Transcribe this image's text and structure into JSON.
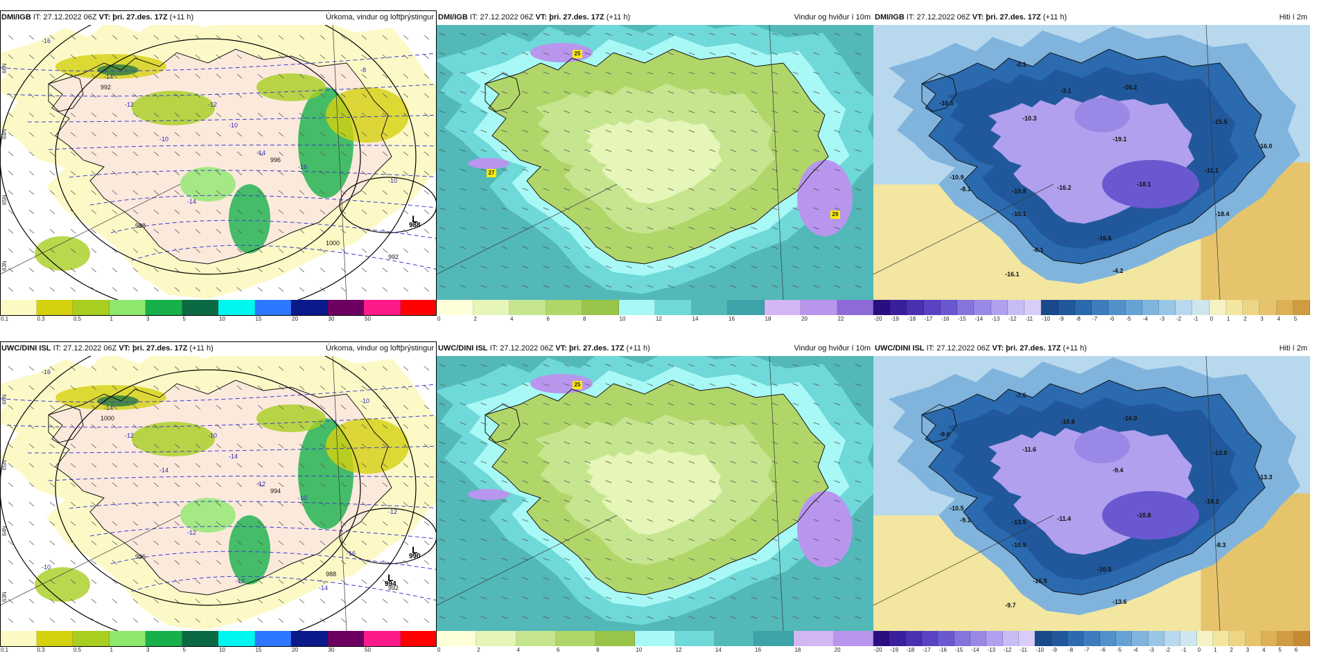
{
  "palettes": {
    "precip": [
      "#fcf9c3",
      "#d5d10f",
      "#a7ce20",
      "#8fe86e",
      "#18b04a",
      "#0b6a44",
      "#00f7ef",
      "#2e77ff",
      "#0a1a8a",
      "#6b0060",
      "#ff1a8c",
      "#ff0000"
    ],
    "wind": [
      "#fefed8",
      "#e6f5b8",
      "#c6e58f",
      "#b0d66a",
      "#98c549",
      "#a8f8f5",
      "#6fd8d8",
      "#52b8b8",
      "#3ea3a8",
      "#d2b7f5",
      "#b896ee",
      "#8c6ad8",
      "#5a38b8"
    ],
    "temp": [
      "#2a0e80",
      "#3a1f9c",
      "#4a30b0",
      "#5a42c2",
      "#6a58d0",
      "#8474dc",
      "#9a88e6",
      "#b0a0ee",
      "#c8bcf5",
      "#d8ccf8",
      "#1b4a8a",
      "#21589c",
      "#2b6aae",
      "#3d7dbd",
      "#5290c9",
      "#66a2d4",
      "#80b4dd",
      "#9ac6e6",
      "#b8d8ee",
      "#d0e6ee",
      "#f5f3c5",
      "#f2e6a0",
      "#ecd585",
      "#e6c46c",
      "#dcb155",
      "#cf9c42",
      "#c48a35"
    ]
  },
  "rows": [
    {
      "source": "DMI/IGB",
      "panels": [
        {
          "type": "precip",
          "src": "DMI/IGB",
          "it_label": "IT:",
          "it": "27.12.2022 06Z",
          "vt_label": "VT:",
          "vt": "þri. 27.des. 17Z",
          "lead": "(+11 h)",
          "title_right": "Úrkoma, vindur og loftþrýstingur",
          "ticks": [
            "0.1",
            "0.3",
            "0.5",
            "1",
            "3",
            "5",
            "10",
            "15",
            "20",
            "30",
            "50"
          ],
          "pressure_labels": [
            "992",
            "988",
            "992",
            "996",
            "1000"
          ],
          "lows": [
            {
              "L": "L",
              "v": "988"
            }
          ],
          "temp_labels": [
            "-16",
            "-14",
            "-12",
            "-10",
            "-14",
            "-12",
            "-10",
            "-14",
            "-16",
            "-8",
            "-10"
          ],
          "lat_labels": [
            "66N",
            "64N",
            "65N",
            "63N"
          ]
        },
        {
          "type": "wind",
          "src": "DMI/IGB",
          "it_label": "IT:",
          "it": "27.12.2022 06Z",
          "vt_label": "VT:",
          "vt": "þri. 27.des. 17Z",
          "lead": "(+11 h)",
          "title_right": "Vindur og hviður í 10m",
          "ticks": [
            "0",
            "2",
            "4",
            "6",
            "8",
            "10",
            "12",
            "14",
            "16",
            "18",
            "20",
            "22"
          ],
          "gusts": [
            "25",
            "27",
            "29"
          ]
        },
        {
          "type": "temp",
          "src": "DMI/IGB",
          "it_label": "IT:",
          "it": "27.12.2022 06Z",
          "vt_label": "VT:",
          "vt": "þri. 27.des. 17Z",
          "lead": "(+11 h)",
          "title_right": "Hiti í 2m",
          "ticks": [
            "-20",
            "-19",
            "-18",
            "-17",
            "-16",
            "-15",
            "-14",
            "-13",
            "-12",
            "-11",
            "-10",
            "-9",
            "-8",
            "-7",
            "-6",
            "-5",
            "-4",
            "-3",
            "-2",
            "-1",
            "0",
            "1",
            "2",
            "3",
            "4",
            "5"
          ],
          "values": [
            "-2.1",
            "-10.5",
            "-10.9",
            "-10.3",
            "-3.1",
            "-16.2",
            "-19.1",
            "-15.5",
            "-16.0",
            "-10.8",
            "-8.1",
            "-16.2",
            "-18.1",
            "-11.1",
            "-10.1",
            "-16.6",
            "-18.4",
            "-6.1",
            "-16.1",
            "-4.2"
          ]
        }
      ]
    },
    {
      "source": "UWC/DINI ISL",
      "panels": [
        {
          "type": "precip",
          "src": "UWC/DINI ISL",
          "it_label": "IT:",
          "it": "27.12.2022 06Z",
          "vt_label": "VT:",
          "vt": "þri. 27.des. 17Z",
          "lead": "(+11 h)",
          "title_right": "Úrkoma, vindur og loftþrýstingur",
          "ticks": [
            "0.1",
            "0.3",
            "0.5",
            "1",
            "3",
            "5",
            "10",
            "15",
            "20",
            "30",
            "50"
          ],
          "pressure_labels": [
            "1000",
            "996",
            "992",
            "994",
            "988"
          ],
          "lows": [
            {
              "L": "L",
              "v": "990"
            },
            {
              "L": "L",
              "v": "994"
            }
          ],
          "temp_labels": [
            "-16",
            "-14",
            "-12",
            "-14",
            "-12",
            "-10",
            "-14",
            "-12",
            "-10",
            "-10",
            "-12",
            "-10",
            "-10",
            "-14",
            "-16"
          ],
          "lat_labels": [
            "66N",
            "65N",
            "64N",
            "63N"
          ]
        },
        {
          "type": "wind",
          "src": "UWC/DINI ISL",
          "it_label": "IT:",
          "it": "27.12.2022 06Z",
          "vt_label": "VT:",
          "vt": "þri. 27.des. 17Z",
          "lead": "(+11 h)",
          "title_right": "Vindur og hviður í 10m",
          "ticks": [
            "0",
            "2",
            "4",
            "6",
            "8",
            "10",
            "12",
            "14",
            "16",
            "18",
            "20"
          ],
          "gusts": [
            "25"
          ]
        },
        {
          "type": "temp",
          "src": "UWC/DINI ISL",
          "it_label": "IT:",
          "it": "27.12.2022 06Z",
          "vt_label": "VT:",
          "vt": "þri. 27.des. 17Z",
          "lead": "(+11 h)",
          "title_right": "Hiti í 2m",
          "ticks": [
            "-20",
            "-19",
            "-18",
            "-17",
            "-16",
            "-15",
            "-14",
            "-13",
            "-12",
            "-11",
            "-10",
            "-9",
            "-8",
            "-7",
            "-6",
            "-5",
            "-4",
            "-3",
            "-2",
            "-1",
            "0",
            "1",
            "2",
            "3",
            "4",
            "5",
            "6"
          ],
          "values": [
            "-7.5",
            "-9.6",
            "-10.5",
            "-11.6",
            "-10.8",
            "-16.0",
            "-9.4",
            "-13.0",
            "-13.3",
            "-13.5",
            "-9.1",
            "-11.4",
            "-10.8",
            "-19.2",
            "-10.9",
            "-10.5",
            "-8.3",
            "-16.5",
            "-9.7",
            "-13.6"
          ]
        }
      ]
    }
  ]
}
